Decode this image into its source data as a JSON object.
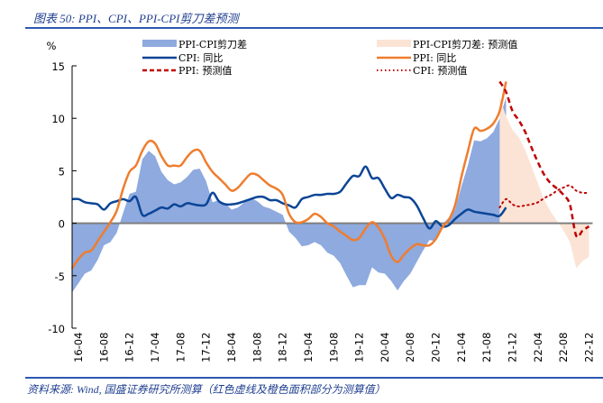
{
  "header": {
    "title": "图表 50: PPI、CPI、PPI-CPI剪刀差预测"
  },
  "footer": {
    "source": "资料来源: Wind, 国盛证券研究所测算（红色虚线及橙色面积部分为测算值）"
  },
  "colors": {
    "gap": "#8eaadf",
    "gap_forecast": "#fbe4d6",
    "cpi": "#0b4596",
    "ppi": "#ef7d2e",
    "forecast_red": "#c00000",
    "zero_line": "#808080"
  },
  "chart_data": {
    "type": "line",
    "title": "PPI、CPI、PPI-CPI剪刀差预测",
    "ylabel": "%",
    "xlabel": "",
    "ylim": [
      -10,
      15
    ],
    "yticks": [
      "15",
      "10",
      "5",
      "0",
      "-5",
      "-10"
    ],
    "ytick_values": [
      15,
      10,
      5,
      0,
      -5,
      -10
    ],
    "start_month": "2016-03",
    "xtick_labels": [
      "16-04",
      "16-08",
      "16-12",
      "17-04",
      "17-08",
      "17-12",
      "18-04",
      "18-08",
      "18-12",
      "19-04",
      "19-08",
      "19-12",
      "20-04",
      "20-08",
      "20-12",
      "21-04",
      "21-08",
      "21-12",
      "22-04",
      "22-08",
      "22-12"
    ],
    "xtick_month_index": [
      1,
      5,
      9,
      13,
      17,
      21,
      25,
      29,
      33,
      37,
      41,
      45,
      49,
      53,
      57,
      61,
      65,
      69,
      73,
      77,
      81
    ],
    "legend": [
      {
        "key": "gap",
        "label": "PPI-CPI剪刀差"
      },
      {
        "key": "gap_forecast",
        "label": "PPI-CPI剪刀差: 预测值"
      },
      {
        "key": "cpi",
        "label": "CPI: 同比"
      },
      {
        "key": "ppi",
        "label": "PPI: 同比"
      },
      {
        "key": "ppi_forecast",
        "label": "PPI: 预测值"
      },
      {
        "key": "cpi_forecast",
        "label": "CPI: 预测值"
      }
    ],
    "series": [
      {
        "name": "CPI: 同比",
        "start": "2016-03",
        "values": [
          2.3,
          2.3,
          2.0,
          1.9,
          1.8,
          1.3,
          1.9,
          2.1,
          2.3,
          2.1,
          2.5,
          0.8,
          0.9,
          1.2,
          1.5,
          1.4,
          1.8,
          1.6,
          1.9,
          1.8,
          1.7,
          1.8,
          2.9,
          2.1,
          1.8,
          1.8,
          1.9,
          2.1,
          2.3,
          2.5,
          2.5,
          2.2,
          2.2,
          1.9,
          1.7,
          1.5,
          2.3,
          2.5,
          2.7,
          2.7,
          2.8,
          2.8,
          3.0,
          3.8,
          4.5,
          4.5,
          5.4,
          4.3,
          4.3,
          3.3,
          2.4,
          2.7,
          2.5,
          2.4,
          1.7,
          0.5,
          -0.5,
          0.2,
          -0.3,
          -0.2,
          0.4,
          0.9,
          1.3,
          1.1,
          1.0,
          0.9,
          0.8,
          0.7,
          1.5
        ]
      },
      {
        "name": "PPI: 同比",
        "start": "2016-03",
        "values": [
          -4.3,
          -3.4,
          -2.8,
          -2.6,
          -1.7,
          -0.8,
          0.1,
          1.2,
          3.3,
          4.9,
          5.5,
          6.9,
          7.8,
          7.6,
          6.4,
          5.5,
          5.5,
          5.5,
          6.3,
          6.9,
          6.9,
          5.8,
          4.9,
          4.3,
          3.7,
          3.1,
          3.4,
          4.1,
          4.7,
          4.6,
          4.1,
          3.6,
          3.3,
          2.7,
          0.9,
          0.1,
          0.1,
          0.4,
          0.9,
          0.6,
          0.0,
          -0.3,
          -0.8,
          -1.2,
          -1.6,
          -1.4,
          -0.5,
          0.1,
          -0.4,
          -1.5,
          -3.1,
          -3.7,
          -3.0,
          -2.4,
          -2.0,
          -2.1,
          -2.1,
          -1.5,
          -0.4,
          0.3,
          1.7,
          4.4,
          6.8,
          9.0,
          8.8,
          9.0,
          9.5,
          10.7,
          13.5
        ]
      },
      {
        "name": "PPI-CPI剪刀差",
        "start": "2016-03",
        "values": [
          -6.6,
          -5.7,
          -4.8,
          -4.5,
          -3.5,
          -2.1,
          -1.8,
          -0.9,
          1.0,
          2.8,
          3.0,
          6.1,
          6.9,
          6.4,
          4.9,
          4.1,
          3.7,
          3.9,
          4.4,
          5.1,
          5.2,
          4.0,
          2.0,
          2.2,
          1.9,
          1.3,
          1.5,
          2.0,
          2.4,
          2.1,
          1.6,
          1.4,
          1.1,
          0.8,
          -0.8,
          -1.4,
          -2.2,
          -2.1,
          -1.8,
          -2.1,
          -2.8,
          -3.1,
          -3.8,
          -5.0,
          -6.1,
          -5.9,
          -5.9,
          -4.2,
          -4.7,
          -4.8,
          -5.5,
          -6.4,
          -5.5,
          -4.8,
          -3.7,
          -2.6,
          -1.6,
          -1.7,
          -0.1,
          0.5,
          1.3,
          3.5,
          5.5,
          7.9,
          7.8,
          8.1,
          8.7,
          10.0,
          12.0
        ]
      },
      {
        "name": "PPI: 预测值",
        "start": "2021-10",
        "values": [
          13.5,
          12.5,
          10.7,
          9.8,
          8.7,
          7.2,
          5.8,
          4.6,
          3.8,
          3.3,
          2.7,
          1.8,
          -1.2,
          -0.7,
          -0.3
        ]
      },
      {
        "name": "CPI: 预测值",
        "start": "2021-10",
        "values": [
          1.5,
          2.3,
          1.8,
          1.6,
          1.7,
          1.8,
          2.0,
          2.4,
          2.7,
          3.1,
          3.4,
          3.6,
          3.1,
          2.9,
          2.9
        ]
      },
      {
        "name": "PPI-CPI剪刀差: 预测值",
        "start": "2021-10",
        "values": [
          12.0,
          10.2,
          8.9,
          8.2,
          7.0,
          5.4,
          3.8,
          2.2,
          1.1,
          0.2,
          -0.7,
          -1.8,
          -4.3,
          -3.6,
          -3.2
        ]
      }
    ]
  }
}
